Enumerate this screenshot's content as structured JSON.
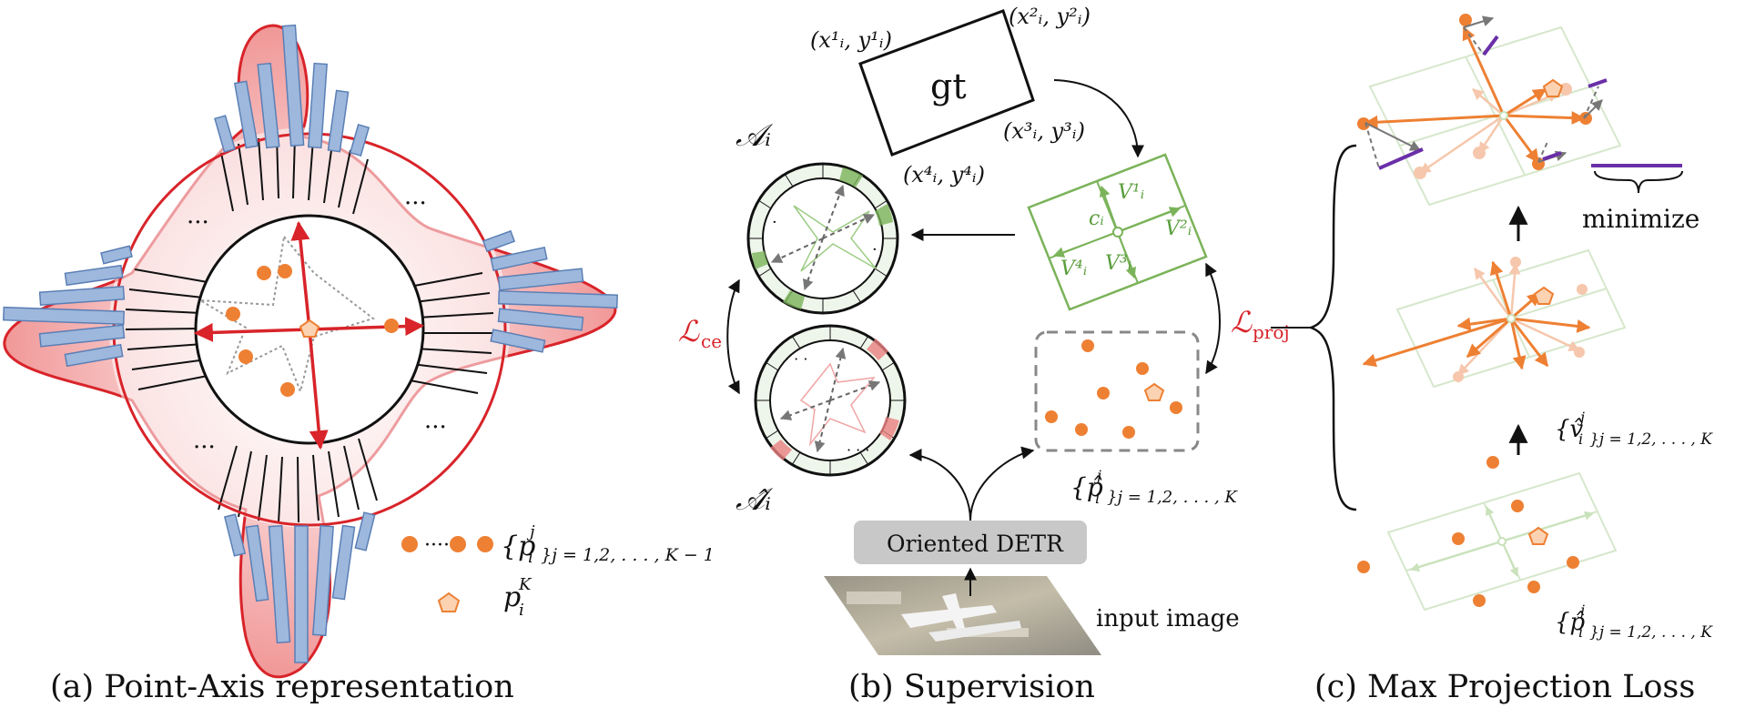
{
  "captions": {
    "a": "(a) Point-Axis representation",
    "b": "(b) Supervision",
    "c": "(c) Max Projection  Loss"
  },
  "panel_a": {
    "ellipsis": "···",
    "point_set_label": "{p",
    "point_set_sup": "j",
    "point_set_sub_i": "i",
    "point_set_range": "}j = 1,2, . . . , K − 1",
    "center_label": "p",
    "center_sup": "K",
    "center_sub": "i",
    "dots_glyph": "·····"
  },
  "panel_b": {
    "gt_label": "gt",
    "corner1": "(x¹ᵢ, y¹ᵢ)",
    "corner2": "(x²ᵢ, y²ᵢ)",
    "corner3": "(x³ᵢ, y³ᵢ)",
    "corner4": "(x⁴ᵢ, y⁴ᵢ)",
    "axis_label": "𝒜ᵢ",
    "axis_pred_label": "𝒜̂ᵢ",
    "loss_ce": "ℒ",
    "loss_ce_sub": "ce",
    "loss_proj": "ℒ",
    "loss_proj_sub": "proj",
    "center": "cᵢ",
    "v1": "V¹ᵢ",
    "v2": "V²ᵢ",
    "v3": "V³ᵢ",
    "v4": "V⁴ᵢ",
    "pred_points": "{p̂",
    "pred_points_sup": "j",
    "pred_points_sub": "i",
    "pred_points_range": "}j = 1,2, . . . , K",
    "detector": "Oriented DETR",
    "input_image": "input image"
  },
  "panel_c": {
    "minimize": "minimize",
    "v_set": "{v̂",
    "v_sup": "j",
    "v_sub": "i",
    "v_range": "}j = 1,2, . . . , K",
    "p_set": "{p̂",
    "p_sup": "j",
    "p_sub": "i",
    "p_range": "}j = 1,2, . . . , K"
  },
  "colors": {
    "red": "#d8242a",
    "orange": "#ee8033",
    "green": "#7bb35a",
    "purple": "#6a2fa8",
    "blue_bar": "#9db8dc",
    "gray": "#888888"
  }
}
